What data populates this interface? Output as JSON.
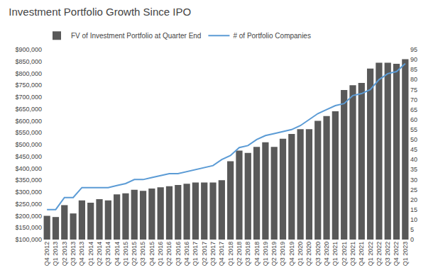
{
  "chart_data": {
    "type": "bar",
    "title": "Investment Portfolio Growth Since IPO",
    "categories": [
      "Q4 2012",
      "Q1 2013",
      "Q2 2013",
      "Q3 2013",
      "Q4 2013",
      "Q1 2014",
      "Q2 2014",
      "Q3 2014",
      "Q4 2014",
      "Q1 2015",
      "Q2 2015",
      "Q3 2015",
      "Q4 2015",
      "Q1 2016",
      "Q2 2016",
      "Q3 2016",
      "Q4 2016",
      "Q1 2017",
      "Q2 2017",
      "Q3 2017",
      "Q4 2017",
      "Q1 2018",
      "Q2 2018",
      "Q3 2018",
      "Q4 2018",
      "Q1 2019",
      "Q2 2019",
      "Q3 2019",
      "Q4 2019",
      "Q1 2020",
      "Q2 2020",
      "Q3 2020",
      "Q4 2020",
      "Q1 2021",
      "Q2 2021",
      "Q3 2021",
      "Q4 2021",
      "Q1 2022",
      "Q2 2022",
      "Q3 2022",
      "Q4 2022",
      "Q1 2023"
    ],
    "series": [
      {
        "name": "FV of Investment Portfolio at Quarter End",
        "type": "bar",
        "color": "#595959",
        "values": [
          200000,
          195000,
          245000,
          210000,
          265000,
          255000,
          270000,
          265000,
          290000,
          295000,
          310000,
          305000,
          315000,
          320000,
          325000,
          330000,
          335000,
          340000,
          340000,
          340000,
          350000,
          430000,
          475000,
          465000,
          490000,
          510000,
          490000,
          525000,
          545000,
          565000,
          565000,
          600000,
          620000,
          640000,
          730000,
          750000,
          760000,
          820000,
          845000,
          845000,
          840000,
          860000
        ]
      },
      {
        "name": "# of Portfolio Companies",
        "type": "line",
        "axis": "y2",
        "color": "#5B9BD5",
        "values": [
          15,
          15,
          21,
          21,
          26,
          26,
          26,
          26,
          27,
          28,
          30,
          30,
          31,
          32,
          33,
          33,
          34,
          35,
          36,
          37,
          40,
          42,
          46,
          47,
          50,
          52,
          53,
          54,
          55,
          57,
          60,
          63,
          65,
          67,
          68,
          72,
          73,
          75,
          80,
          83,
          84,
          88
        ]
      }
    ],
    "ylim": [
      100000,
      900000
    ],
    "yticks": [
      {
        "value": 100000,
        "label": "$100,000"
      },
      {
        "value": 150000,
        "label": "$150,000"
      },
      {
        "value": 200000,
        "label": "$200,000"
      },
      {
        "value": 250000,
        "label": "$250,000"
      },
      {
        "value": 300000,
        "label": "$300,000"
      },
      {
        "value": 350000,
        "label": "$350,000"
      },
      {
        "value": 400000,
        "label": "$400,000"
      },
      {
        "value": 450000,
        "label": "$450,000"
      },
      {
        "value": 500000,
        "label": "$500,000"
      },
      {
        "value": 550000,
        "label": "$550,000"
      },
      {
        "value": 600000,
        "label": "$600,000"
      },
      {
        "value": 650000,
        "label": "$650,000"
      },
      {
        "value": 700000,
        "label": "$700,000"
      },
      {
        "value": 750000,
        "label": "$750,000"
      },
      {
        "value": 800000,
        "label": "$800,000"
      },
      {
        "value": 850000,
        "label": "$850,000"
      },
      {
        "value": 900000,
        "label": "$900,000"
      }
    ],
    "y2lim": [
      0,
      95
    ],
    "y2ticks": [
      0,
      5,
      10,
      15,
      20,
      25,
      30,
      35,
      40,
      45,
      50,
      55,
      60,
      65,
      70,
      75,
      80,
      85,
      90,
      95
    ],
    "grid": false,
    "legend": "upper left"
  }
}
